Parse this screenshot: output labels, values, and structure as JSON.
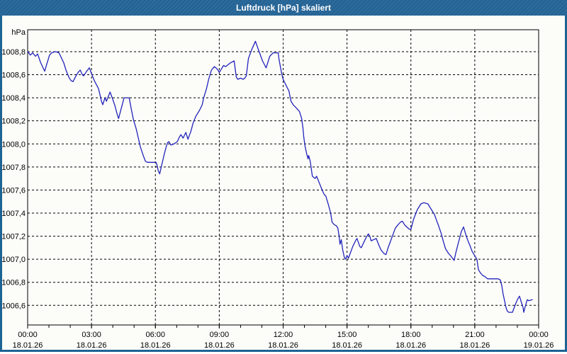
{
  "window": {
    "title": "Luftdruck [hPa] skaliert",
    "title_bar_color": "#26679a",
    "border_color": "#1d6394",
    "content_background": "#fcfdf9"
  },
  "chart_data": {
    "type": "line",
    "title": "Luftdruck [hPa] skaliert",
    "xlabel": "",
    "ylabel": "hPa",
    "grid": true,
    "legend": "none",
    "line_color": "#2323bb",
    "grid_color": "#000000",
    "xlim": [
      0,
      24
    ],
    "ylim": [
      1006.43,
      1008.99
    ],
    "y_ticks": [
      {
        "value": 1008.8,
        "label": "1008,8"
      },
      {
        "value": 1008.6,
        "label": "1008,6"
      },
      {
        "value": 1008.4,
        "label": "1008,4"
      },
      {
        "value": 1008.2,
        "label": "1008,2"
      },
      {
        "value": 1008.0,
        "label": "1008,0"
      },
      {
        "value": 1007.8,
        "label": "1007,8"
      },
      {
        "value": 1007.6,
        "label": "1007,6"
      },
      {
        "value": 1007.4,
        "label": "1007,4"
      },
      {
        "value": 1007.2,
        "label": "1007,2"
      },
      {
        "value": 1007.0,
        "label": "1007,0"
      },
      {
        "value": 1006.8,
        "label": "1006,8"
      },
      {
        "value": 1006.6,
        "label": "1006,6"
      }
    ],
    "x_ticks": [
      {
        "hour": 0,
        "time": "00:00",
        "date": "18.01.26"
      },
      {
        "hour": 3,
        "time": "03:00",
        "date": "18.01.26"
      },
      {
        "hour": 6,
        "time": "06:00",
        "date": "18.01.26"
      },
      {
        "hour": 9,
        "time": "09:00",
        "date": "18.01.26"
      },
      {
        "hour": 12,
        "time": "12:00",
        "date": "18.01.26"
      },
      {
        "hour": 15,
        "time": "15:00",
        "date": "18.01.26"
      },
      {
        "hour": 18,
        "time": "18:00",
        "date": "18.01.26"
      },
      {
        "hour": 21,
        "time": "21:00",
        "date": "18.01.26"
      },
      {
        "hour": 24,
        "time": "00:00",
        "date": "19.01.26"
      }
    ],
    "minor_x_tick_every_hours": 1,
    "series": [
      {
        "name": "Luftdruck",
        "unit": "hPa",
        "points": [
          [
            0.0,
            1008.8
          ],
          [
            0.13,
            1008.77
          ],
          [
            0.23,
            1008.79
          ],
          [
            0.37,
            1008.76
          ],
          [
            0.47,
            1008.78
          ],
          [
            0.6,
            1008.71
          ],
          [
            0.7,
            1008.67
          ],
          [
            0.8,
            1008.63
          ],
          [
            0.93,
            1008.71
          ],
          [
            1.03,
            1008.77
          ],
          [
            1.13,
            1008.79
          ],
          [
            1.3,
            1008.8
          ],
          [
            1.47,
            1008.79
          ],
          [
            1.6,
            1008.74
          ],
          [
            1.7,
            1008.7
          ],
          [
            1.8,
            1008.64
          ],
          [
            1.93,
            1008.58
          ],
          [
            2.03,
            1008.55
          ],
          [
            2.13,
            1008.54
          ],
          [
            2.27,
            1008.59
          ],
          [
            2.37,
            1008.62
          ],
          [
            2.47,
            1008.64
          ],
          [
            2.57,
            1008.6
          ],
          [
            2.63,
            1008.59
          ],
          [
            2.77,
            1008.63
          ],
          [
            2.9,
            1008.66
          ],
          [
            3.0,
            1008.61
          ],
          [
            3.13,
            1008.55
          ],
          [
            3.27,
            1008.5
          ],
          [
            3.33,
            1008.48
          ],
          [
            3.47,
            1008.37
          ],
          [
            3.53,
            1008.34
          ],
          [
            3.63,
            1008.4
          ],
          [
            3.7,
            1008.37
          ],
          [
            3.87,
            1008.45
          ],
          [
            3.97,
            1008.4
          ],
          [
            4.1,
            1008.33
          ],
          [
            4.2,
            1008.26
          ],
          [
            4.27,
            1008.22
          ],
          [
            4.53,
            1008.4
          ],
          [
            4.77,
            1008.4
          ],
          [
            4.87,
            1008.3
          ],
          [
            4.97,
            1008.21
          ],
          [
            5.1,
            1008.13
          ],
          [
            5.2,
            1008.05
          ],
          [
            5.3,
            1007.97
          ],
          [
            5.43,
            1007.9
          ],
          [
            5.53,
            1007.85
          ],
          [
            5.63,
            1007.84
          ],
          [
            6.03,
            1007.84
          ],
          [
            6.07,
            1007.82
          ],
          [
            6.13,
            1007.77
          ],
          [
            6.2,
            1007.74
          ],
          [
            6.3,
            1007.82
          ],
          [
            6.4,
            1007.9
          ],
          [
            6.5,
            1007.97
          ],
          [
            6.57,
            1008.01
          ],
          [
            6.63,
            1008.02
          ],
          [
            6.73,
            1007.99
          ],
          [
            6.87,
            1008.0
          ],
          [
            7.03,
            1008.02
          ],
          [
            7.13,
            1008.06
          ],
          [
            7.2,
            1008.08
          ],
          [
            7.3,
            1008.05
          ],
          [
            7.43,
            1008.1
          ],
          [
            7.53,
            1008.04
          ],
          [
            7.67,
            1008.11
          ],
          [
            7.77,
            1008.18
          ],
          [
            7.9,
            1008.24
          ],
          [
            8.07,
            1008.29
          ],
          [
            8.2,
            1008.34
          ],
          [
            8.27,
            1008.4
          ],
          [
            8.4,
            1008.48
          ],
          [
            8.5,
            1008.56
          ],
          [
            8.63,
            1008.64
          ],
          [
            8.77,
            1008.67
          ],
          [
            8.9,
            1008.65
          ],
          [
            8.97,
            1008.63
          ],
          [
            9.0,
            1008.62
          ],
          [
            9.2,
            1008.68
          ],
          [
            9.3,
            1008.67
          ],
          [
            9.5,
            1008.7
          ],
          [
            9.7,
            1008.72
          ],
          [
            9.77,
            1008.62
          ],
          [
            9.8,
            1008.58
          ],
          [
            9.87,
            1008.56
          ],
          [
            10.0,
            1008.57
          ],
          [
            10.13,
            1008.56
          ],
          [
            10.2,
            1008.57
          ],
          [
            10.27,
            1008.59
          ],
          [
            10.37,
            1008.74
          ],
          [
            10.53,
            1008.82
          ],
          [
            10.7,
            1008.89
          ],
          [
            10.87,
            1008.8
          ],
          [
            11.03,
            1008.72
          ],
          [
            11.2,
            1008.66
          ],
          [
            11.37,
            1008.76
          ],
          [
            11.53,
            1008.79
          ],
          [
            11.77,
            1008.79
          ],
          [
            11.8,
            1008.74
          ],
          [
            11.93,
            1008.61
          ],
          [
            12.0,
            1008.56
          ],
          [
            12.13,
            1008.51
          ],
          [
            12.27,
            1008.46
          ],
          [
            12.37,
            1008.37
          ],
          [
            12.47,
            1008.34
          ],
          [
            12.63,
            1008.31
          ],
          [
            12.77,
            1008.28
          ],
          [
            12.87,
            1008.22
          ],
          [
            12.93,
            1008.14
          ],
          [
            12.97,
            1008.06
          ],
          [
            13.03,
            1007.98
          ],
          [
            13.1,
            1007.92
          ],
          [
            13.17,
            1007.87
          ],
          [
            13.2,
            1007.9
          ],
          [
            13.27,
            1007.85
          ],
          [
            13.37,
            1007.72
          ],
          [
            13.5,
            1007.7
          ],
          [
            13.57,
            1007.72
          ],
          [
            13.7,
            1007.66
          ],
          [
            13.83,
            1007.6
          ],
          [
            13.93,
            1007.56
          ],
          [
            14.0,
            1007.55
          ],
          [
            14.13,
            1007.47
          ],
          [
            14.23,
            1007.4
          ],
          [
            14.3,
            1007.32
          ],
          [
            14.4,
            1007.3
          ],
          [
            14.5,
            1007.29
          ],
          [
            14.57,
            1007.27
          ],
          [
            14.63,
            1007.2
          ],
          [
            14.67,
            1007.13
          ],
          [
            14.73,
            1007.17
          ],
          [
            14.8,
            1007.08
          ],
          [
            14.87,
            1007.02
          ],
          [
            14.93,
            1007.0
          ],
          [
            15.0,
            1007.03
          ],
          [
            15.07,
            1007.01
          ],
          [
            15.13,
            1007.04
          ],
          [
            15.27,
            1007.11
          ],
          [
            15.4,
            1007.16
          ],
          [
            15.47,
            1007.18
          ],
          [
            15.6,
            1007.11
          ],
          [
            15.67,
            1007.1
          ],
          [
            15.77,
            1007.14
          ],
          [
            15.9,
            1007.19
          ],
          [
            16.0,
            1007.22
          ],
          [
            16.07,
            1007.2
          ],
          [
            16.13,
            1007.16
          ],
          [
            16.37,
            1007.18
          ],
          [
            16.5,
            1007.12
          ],
          [
            16.6,
            1007.08
          ],
          [
            16.73,
            1007.05
          ],
          [
            16.83,
            1007.04
          ],
          [
            16.93,
            1007.1
          ],
          [
            17.07,
            1007.17
          ],
          [
            17.17,
            1007.22
          ],
          [
            17.27,
            1007.27
          ],
          [
            17.4,
            1007.3
          ],
          [
            17.5,
            1007.32
          ],
          [
            17.6,
            1007.33
          ],
          [
            17.7,
            1007.3
          ],
          [
            17.8,
            1007.28
          ],
          [
            17.93,
            1007.26
          ],
          [
            18.0,
            1007.26
          ],
          [
            18.13,
            1007.35
          ],
          [
            18.3,
            1007.43
          ],
          [
            18.47,
            1007.48
          ],
          [
            18.6,
            1007.49
          ],
          [
            18.8,
            1007.48
          ],
          [
            18.93,
            1007.44
          ],
          [
            19.1,
            1007.39
          ],
          [
            19.2,
            1007.34
          ],
          [
            19.3,
            1007.29
          ],
          [
            19.43,
            1007.22
          ],
          [
            19.53,
            1007.15
          ],
          [
            19.63,
            1007.09
          ],
          [
            19.77,
            1007.05
          ],
          [
            19.87,
            1007.03
          ],
          [
            20.03,
            1006.99
          ],
          [
            20.13,
            1007.07
          ],
          [
            20.27,
            1007.17
          ],
          [
            20.37,
            1007.24
          ],
          [
            20.47,
            1007.28
          ],
          [
            20.6,
            1007.2
          ],
          [
            20.7,
            1007.15
          ],
          [
            20.77,
            1007.12
          ],
          [
            20.87,
            1007.07
          ],
          [
            21.0,
            1007.03
          ],
          [
            21.1,
            1007.0
          ],
          [
            21.17,
            1006.91
          ],
          [
            21.27,
            1006.88
          ],
          [
            21.37,
            1006.86
          ],
          [
            21.47,
            1006.85
          ],
          [
            21.6,
            1006.83
          ],
          [
            22.1,
            1006.83
          ],
          [
            22.2,
            1006.82
          ],
          [
            22.27,
            1006.77
          ],
          [
            22.33,
            1006.7
          ],
          [
            22.4,
            1006.64
          ],
          [
            22.47,
            1006.58
          ],
          [
            22.53,
            1006.55
          ],
          [
            22.6,
            1006.54
          ],
          [
            22.77,
            1006.54
          ],
          [
            22.87,
            1006.59
          ],
          [
            22.93,
            1006.62
          ],
          [
            23.03,
            1006.66
          ],
          [
            23.1,
            1006.68
          ],
          [
            23.13,
            1006.66
          ],
          [
            23.2,
            1006.62
          ],
          [
            23.27,
            1006.58
          ],
          [
            23.3,
            1006.54
          ],
          [
            23.37,
            1006.59
          ],
          [
            23.43,
            1006.63
          ],
          [
            23.47,
            1006.65
          ],
          [
            23.53,
            1006.64
          ],
          [
            23.7,
            1006.65
          ]
        ]
      }
    ]
  }
}
